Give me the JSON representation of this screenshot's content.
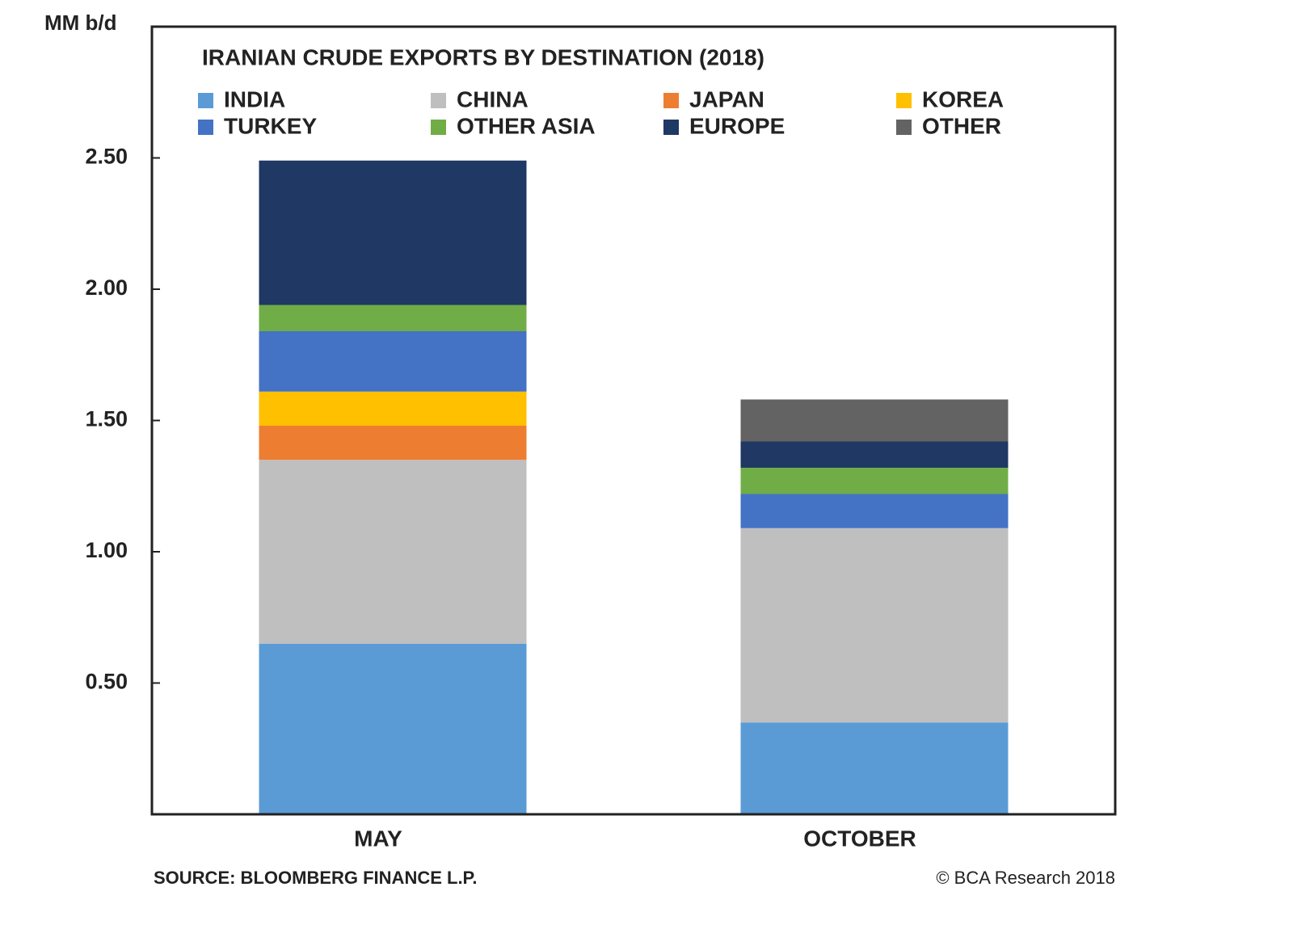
{
  "chart_data": {
    "type": "stacked_bar",
    "title": "IRANIAN CRUDE EXPORTS BY DESTINATION (2018)",
    "y_label": "MM b/d",
    "source": "SOURCE: BLOOMBERG FINANCE L.P.",
    "credit": "© BCA Research 2018",
    "categories": [
      "MAY",
      "OCTOBER"
    ],
    "series": [
      {
        "name": "INDIA",
        "color": "#5b9bd5",
        "values": [
          0.65,
          0.35
        ]
      },
      {
        "name": "CHINA",
        "color": "#bfbfbf",
        "values": [
          0.7,
          0.74
        ]
      },
      {
        "name": "JAPAN",
        "color": "#ed7d31",
        "values": [
          0.13,
          0
        ]
      },
      {
        "name": "KOREA",
        "color": "#ffc000",
        "values": [
          0.13,
          0
        ]
      },
      {
        "name": "TURKEY",
        "color": "#4472c4",
        "values": [
          0.23,
          0.13
        ]
      },
      {
        "name": "OTHER ASIA",
        "color": "#70ad47",
        "values": [
          0.1,
          0.1
        ]
      },
      {
        "name": "EUROPE",
        "color": "#1f3864",
        "values": [
          0.55,
          0.1
        ]
      },
      {
        "name": "OTHER",
        "color": "#636363",
        "values": [
          0,
          0.16
        ]
      }
    ],
    "ylim": [
      0,
      3.0
    ],
    "yticks": [
      {
        "value": 0.5,
        "label": "0.50"
      },
      {
        "value": 1,
        "label": "1.00"
      },
      {
        "value": 1.5,
        "label": "1.50"
      },
      {
        "value": 2,
        "label": "2.00"
      },
      {
        "value": 2.5,
        "label": "2.50"
      }
    ],
    "grid": false
  }
}
